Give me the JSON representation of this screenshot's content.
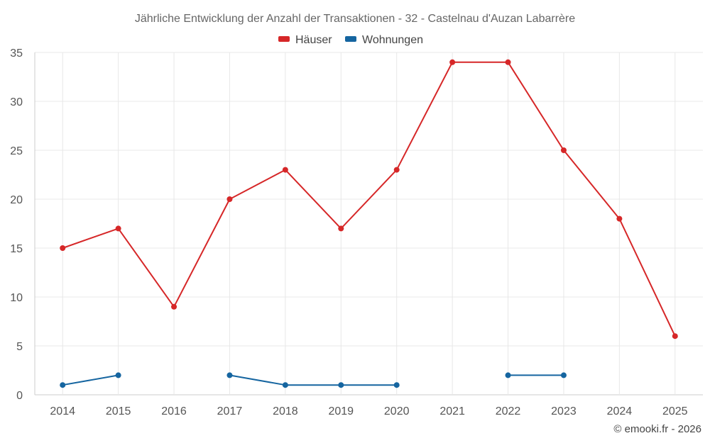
{
  "chart_data": {
    "type": "line",
    "title": "Jährliche Entwicklung der Anzahl der Transaktionen - 32 - Castelnau d'Auzan Labarrère",
    "categories": [
      "2014",
      "2015",
      "2016",
      "2017",
      "2018",
      "2019",
      "2020",
      "2021",
      "2022",
      "2023",
      "2024",
      "2025"
    ],
    "series": [
      {
        "name": "Häuser",
        "color": "#d62728",
        "values": [
          15,
          17,
          9,
          20,
          23,
          17,
          23,
          34,
          34,
          25,
          18,
          6
        ]
      },
      {
        "name": "Wohnungen",
        "color": "#1565a0",
        "values": [
          1,
          2,
          null,
          2,
          1,
          1,
          1,
          null,
          2,
          2,
          null,
          null
        ]
      }
    ],
    "ylim": [
      0,
      35
    ],
    "yticks": [
      0,
      5,
      10,
      15,
      20,
      25,
      30,
      35
    ],
    "grid": true,
    "legend": "top-center"
  },
  "credit": "© emooki.fr - 2026"
}
